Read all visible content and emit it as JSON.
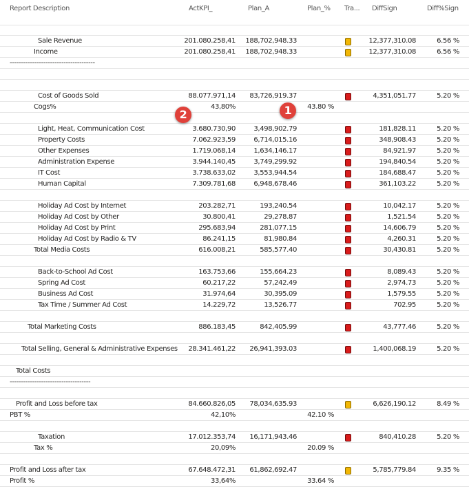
{
  "columns": {
    "description": "Report Description",
    "actkpi": "ActKPI_",
    "plan_a": "Plan_A",
    "plan_pct": "Plan_%",
    "trend": "Tra...",
    "diffsign": "DiffSign",
    "diffpct": "Diff%Sign"
  },
  "colors": {
    "yellow": "#f2b705",
    "red": "#d91c1c",
    "badge": "#e0413a"
  },
  "rows": [
    {
      "desc": "",
      "act": "",
      "plan": "",
      "planpct": "",
      "status": "",
      "diff": "",
      "diffpct": ""
    },
    {
      "desc": "Sale Revenue",
      "act": "201.080.258,41",
      "plan": "188,702,948.33",
      "planpct": "",
      "status": "yellow",
      "diff": "12,377,310.08",
      "diffpct": "6.56 %"
    },
    {
      "desc": "Income",
      "act": "201.080.258,41",
      "plan": "188,702,948.33",
      "planpct": "",
      "status": "yellow",
      "diff": "12,377,310.08",
      "diffpct": "6.56 %"
    },
    {
      "desc": "--------------------------------------",
      "act": "",
      "plan": "",
      "planpct": "",
      "status": "",
      "diff": "",
      "diffpct": ""
    },
    {
      "desc": "",
      "act": "",
      "plan": "",
      "planpct": "",
      "status": "",
      "diff": "",
      "diffpct": ""
    },
    {
      "desc": "",
      "act": "",
      "plan": "",
      "planpct": "",
      "status": "",
      "diff": "",
      "diffpct": ""
    },
    {
      "desc": "Cost of Goods Sold",
      "act": "88.077.971,14",
      "plan": "83,726,919.37",
      "planpct": "",
      "status": "red",
      "diff": "4,351,051.77",
      "diffpct": "5.20 %"
    },
    {
      "desc": "Cogs%",
      "act": "43,80%",
      "plan": "",
      "planpct": "43.80 %",
      "status": "",
      "diff": "",
      "diffpct": ""
    },
    {
      "desc": "",
      "act": "",
      "plan": "",
      "planpct": "",
      "status": "",
      "diff": "",
      "diffpct": ""
    },
    {
      "desc": "Light, Heat, Communication Cost",
      "act": "3.680.730,90",
      "plan": "3,498,902.79",
      "planpct": "",
      "status": "red",
      "diff": "181,828.11",
      "diffpct": "5.20 %"
    },
    {
      "desc": "Property Costs",
      "act": "7.062.923,59",
      "plan": "6,714,015.16",
      "planpct": "",
      "status": "red",
      "diff": "348,908.43",
      "diffpct": "5.20 %"
    },
    {
      "desc": "Other Expenses",
      "act": "1.719.068,14",
      "plan": "1,634,146.17",
      "planpct": "",
      "status": "red",
      "diff": "84,921.97",
      "diffpct": "5.20 %"
    },
    {
      "desc": "Administration Expense",
      "act": "3.944.140,45",
      "plan": "3,749,299.92",
      "planpct": "",
      "status": "red",
      "diff": "194,840.54",
      "diffpct": "5.20 %"
    },
    {
      "desc": "IT Cost",
      "act": "3.738.633,02",
      "plan": "3,553,944.54",
      "planpct": "",
      "status": "red",
      "diff": "184,688.47",
      "diffpct": "5.20 %"
    },
    {
      "desc": "Human Capital",
      "act": "7.309.781,68",
      "plan": "6,948,678.46",
      "planpct": "",
      "status": "red",
      "diff": "361,103.22",
      "diffpct": "5.20 %"
    },
    {
      "desc": "",
      "act": "",
      "plan": "",
      "planpct": "",
      "status": "",
      "diff": "",
      "diffpct": ""
    },
    {
      "desc": "Holiday Ad Cost by Internet",
      "act": "203.282,71",
      "plan": "193,240.54",
      "planpct": "",
      "status": "red",
      "diff": "10,042.17",
      "diffpct": "5.20 %"
    },
    {
      "desc": "Holiday Ad Cost by Other",
      "act": "30.800,41",
      "plan": "29,278.87",
      "planpct": "",
      "status": "red",
      "diff": "1,521.54",
      "diffpct": "5.20 %"
    },
    {
      "desc": "Holiday Ad Cost by Print",
      "act": "295.683,94",
      "plan": "281,077.15",
      "planpct": "",
      "status": "red",
      "diff": "14,606.79",
      "diffpct": "5.20 %"
    },
    {
      "desc": "Holiday Ad Cost by Radio & TV",
      "act": "86.241,15",
      "plan": "81,980.84",
      "planpct": "",
      "status": "red",
      "diff": "4,260.31",
      "diffpct": "5.20 %"
    },
    {
      "desc": "Total Media Costs",
      "act": "616.008,21",
      "plan": "585,577.40",
      "planpct": "",
      "status": "red",
      "diff": "30,430.81",
      "diffpct": "5.20 %"
    },
    {
      "desc": "",
      "act": "",
      "plan": "",
      "planpct": "",
      "status": "",
      "diff": "",
      "diffpct": ""
    },
    {
      "desc": "Back-to-School Ad Cost",
      "act": "163.753,66",
      "plan": "155,664.23",
      "planpct": "",
      "status": "red",
      "diff": "8,089.43",
      "diffpct": "5.20 %"
    },
    {
      "desc": "Spring Ad Cost",
      "act": "60.217,22",
      "plan": "57,242.49",
      "planpct": "",
      "status": "red",
      "diff": "2,974.73",
      "diffpct": "5.20 %"
    },
    {
      "desc": "Business Ad Cost",
      "act": "31.974,64",
      "plan": "30,395.09",
      "planpct": "",
      "status": "red",
      "diff": "1,579.55",
      "diffpct": "5.20 %"
    },
    {
      "desc": "Tax Time / Summer Ad Cost",
      "act": "14.229,72",
      "plan": "13,526.77",
      "planpct": "",
      "status": "red",
      "diff": "702.95",
      "diffpct": "5.20 %"
    },
    {
      "desc": "",
      "act": "",
      "plan": "",
      "planpct": "",
      "status": "",
      "diff": "",
      "diffpct": ""
    },
    {
      "desc": "Total Marketing Costs",
      "act": "886.183,45",
      "plan": "842,405.99",
      "planpct": "",
      "status": "red",
      "diff": "43,777.46",
      "diffpct": "5.20 %"
    },
    {
      "desc": "",
      "act": "",
      "plan": "",
      "planpct": "",
      "status": "",
      "diff": "",
      "diffpct": ""
    },
    {
      "desc": "Total Selling, General & Administrative Expenses",
      "act": "28.341.461,22",
      "plan": "26,941,393.03",
      "planpct": "",
      "status": "red",
      "diff": "1,400,068.19",
      "diffpct": "5.20 %"
    },
    {
      "desc": "",
      "act": "",
      "plan": "",
      "planpct": "",
      "status": "",
      "diff": "",
      "diffpct": ""
    },
    {
      "desc": "Total Costs",
      "act": "",
      "plan": "",
      "planpct": "",
      "status": "",
      "diff": "",
      "diffpct": ""
    },
    {
      "desc": "------------------------------------",
      "act": "",
      "plan": "",
      "planpct": "",
      "status": "",
      "diff": "",
      "diffpct": ""
    },
    {
      "desc": "",
      "act": "",
      "plan": "",
      "planpct": "",
      "status": "",
      "diff": "",
      "diffpct": ""
    },
    {
      "desc": "Profit and Loss before tax",
      "act": "84.660.826,05",
      "plan": "78,034,635.93",
      "planpct": "",
      "status": "yellow",
      "diff": "6,626,190.12",
      "diffpct": "8.49 %"
    },
    {
      "desc": "PBT %",
      "act": "42,10%",
      "plan": "",
      "planpct": "42.10 %",
      "status": "",
      "diff": "",
      "diffpct": ""
    },
    {
      "desc": "",
      "act": "",
      "plan": "",
      "planpct": "",
      "status": "",
      "diff": "",
      "diffpct": ""
    },
    {
      "desc": "Taxation",
      "act": "17.012.353,74",
      "plan": "16,171,943.46",
      "planpct": "",
      "status": "red",
      "diff": "840,410.28",
      "diffpct": "5.20 %"
    },
    {
      "desc": "Tax %",
      "act": "20,09%",
      "plan": "",
      "planpct": "20.09 %",
      "status": "",
      "diff": "",
      "diffpct": ""
    },
    {
      "desc": "",
      "act": "",
      "plan": "",
      "planpct": "",
      "status": "",
      "diff": "",
      "diffpct": ""
    },
    {
      "desc": "Profit and Loss after tax",
      "act": "67.648.472,31",
      "plan": "61,862,692.47",
      "planpct": "",
      "status": "yellow",
      "diff": "5,785,779.84",
      "diffpct": "9.35 %"
    },
    {
      "desc": "Profit %",
      "act": "33,64%",
      "plan": "",
      "planpct": "33.64 %",
      "status": "",
      "diff": "",
      "diffpct": ""
    }
  ],
  "annotations": [
    {
      "label": "1"
    },
    {
      "label": "2"
    }
  ]
}
